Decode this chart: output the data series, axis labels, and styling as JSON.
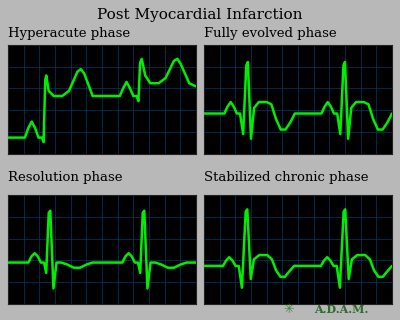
{
  "title": "Post Myocardial Infarction",
  "title_fontsize": 11,
  "label_fontsize": 9.5,
  "panels": [
    {
      "label": "Hyperacute phase",
      "type": "hyperacute"
    },
    {
      "label": "Fully evolved phase",
      "type": "fully_evolved"
    },
    {
      "label": "Resolution phase",
      "type": "resolution"
    },
    {
      "label": "Stabilized chronic phase",
      "type": "stabilized_chronic"
    }
  ],
  "bg_color": "#000000",
  "grid_color": "#003a6e",
  "ecg_color": "#00ee00",
  "ecg_linewidth": 1.8,
  "outer_bg": "#b8b8b8",
  "adam_color": "#2e6b2e",
  "adam_star_color": "#3a8a3a"
}
